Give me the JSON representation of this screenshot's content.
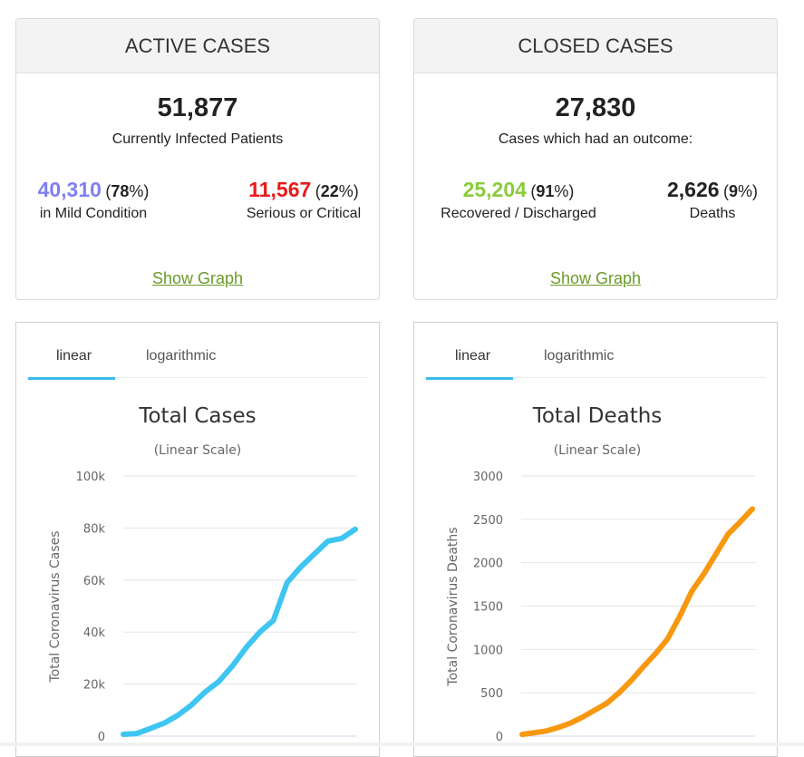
{
  "active": {
    "title": "ACTIVE CASES",
    "total": "51,877",
    "total_label": "Currently Infected Patients",
    "mild": {
      "value": "40,310",
      "pct_open": "(",
      "pct": "78",
      "pct_close": "%)",
      "label": "in Mild Condition",
      "color": "#8080f0"
    },
    "serious": {
      "value": "11,567",
      "pct_open": "(",
      "pct": "22",
      "pct_close": "%)",
      "label": "Serious or Critical",
      "color": "#e81a1a"
    },
    "link": "Show Graph"
  },
  "closed": {
    "title": "CLOSED CASES",
    "total": "27,830",
    "total_label": "Cases which had an outcome:",
    "recovered": {
      "value": "25,204",
      "pct_open": "(",
      "pct": "91",
      "pct_close": "%)",
      "label": "Recovered / Discharged",
      "color": "#8acb3a"
    },
    "deaths": {
      "value": "2,626",
      "pct_open": "(",
      "pct": "9",
      "pct_close": "%)",
      "label": "Deaths",
      "color": "#222222"
    },
    "link": "Show Graph"
  },
  "chart_data": [
    {
      "type": "line",
      "tabs": [
        "linear",
        "logarithmic"
      ],
      "active_tab": "linear",
      "title": "Total Cases",
      "subtitle": "(Linear Scale)",
      "ylabel": "Total Coronavirus Cases",
      "xlabel": "",
      "ylim": [
        0,
        100000
      ],
      "yticks": [
        0,
        20000,
        40000,
        60000,
        80000,
        100000
      ],
      "ytick_labels": [
        "0",
        "20k",
        "40k",
        "60k",
        "80k",
        "100k"
      ],
      "grid": true,
      "color": "#3ec5f2",
      "series": [
        {
          "name": "Total Cases",
          "values": [
            700,
            1000,
            3000,
            5000,
            8000,
            12000,
            17000,
            21000,
            27000,
            34000,
            40000,
            44500,
            59000,
            65000,
            70000,
            75000,
            76000,
            79500
          ]
        }
      ]
    },
    {
      "type": "line",
      "tabs": [
        "linear",
        "logarithmic"
      ],
      "active_tab": "linear",
      "title": "Total Deaths",
      "subtitle": "(Linear Scale)",
      "ylabel": "Total Coronavirus Deaths",
      "xlabel": "",
      "ylim": [
        0,
        3000
      ],
      "yticks": [
        0,
        500,
        1000,
        1500,
        2000,
        2500,
        3000
      ],
      "ytick_labels": [
        "0",
        "500",
        "1000",
        "1500",
        "2000",
        "2500",
        "3000"
      ],
      "grid": true,
      "color": "#f7980f",
      "series": [
        {
          "name": "Total Deaths",
          "values": [
            20,
            40,
            60,
            100,
            150,
            220,
            300,
            380,
            500,
            640,
            800,
            950,
            1120,
            1380,
            1670,
            1870,
            2100,
            2330,
            2470,
            2620
          ]
        }
      ]
    }
  ]
}
